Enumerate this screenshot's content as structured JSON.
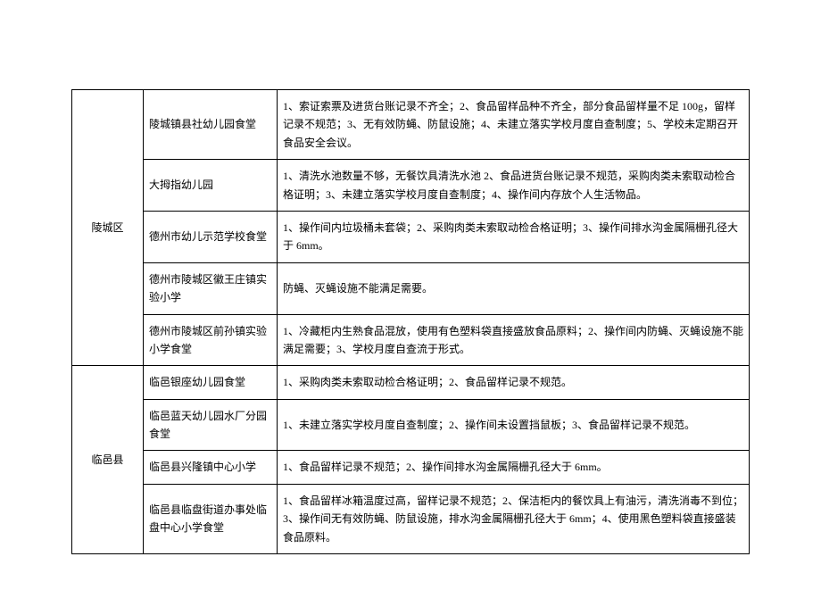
{
  "table": {
    "districts": [
      {
        "name": "陵城区",
        "rows": [
          {
            "school": "陵城镇县社幼儿园食堂",
            "issues": "1、索证索票及进货台账记录不齐全；2、食品留样品种不齐全，部分食品留样量不足 100g，留样记录不规范；3、无有效防蝇、防鼠设施；4、未建立落实学校月度自查制度；5、学校未定期召开食品安全会议。"
          },
          {
            "school": "大拇指幼儿园",
            "issues": "1、清洗水池数量不够，无餐饮具清洗水池 2、食品进货台账记录不规范，采购肉类未索取动检合格证明；3、未建立落实学校月度自查制度；4、操作间内存放个人生活物品。"
          },
          {
            "school": "德州市幼儿示范学校食堂",
            "issues": "1、操作间内垃圾桶未套袋；2、采购肉类未索取动检合格证明；3、操作间排水沟金属隔栅孔径大于 6mm。"
          },
          {
            "school": "德州市陵城区徽王庄镇实验小学",
            "issues": "防蝇、灭蝇设施不能满足需要。"
          },
          {
            "school": "德州市陵城区前孙镇实验小学食堂",
            "issues": "1、冷藏柜内生熟食品混放，使用有色塑料袋直接盛放食品原料；2、操作间内防蝇、灭蝇设施不能满足需要；3、学校月度自查流于形式。"
          }
        ]
      },
      {
        "name": "临邑县",
        "rows": [
          {
            "school": "临邑银座幼儿园食堂",
            "issues": "1、采购肉类未索取动检合格证明；2、食品留样记录不规范。"
          },
          {
            "school": "临邑蓝天幼儿园水厂分园食堂",
            "issues": "1、未建立落实学校月度自查制度；2、操作间未设置挡鼠板；3、食品留样记录不规范。"
          },
          {
            "school": "临邑县兴隆镇中心小学",
            "issues": "1、食品留样记录不规范；2、操作间排水沟金属隔栅孔径大于 6mm。"
          },
          {
            "school": "临邑县临盘街道办事处临盘中心小学食堂",
            "issues": "1、食品留样冰箱温度过高，留样记录不规范；2、保洁柜内的餐饮具上有油污，清洗消毒不到位；3、操作间无有效防蝇、防鼠设施，排水沟金属隔栅孔径大于 6mm；4、使用黑色塑料袋直接盛装食品原料。"
          }
        ]
      }
    ]
  }
}
